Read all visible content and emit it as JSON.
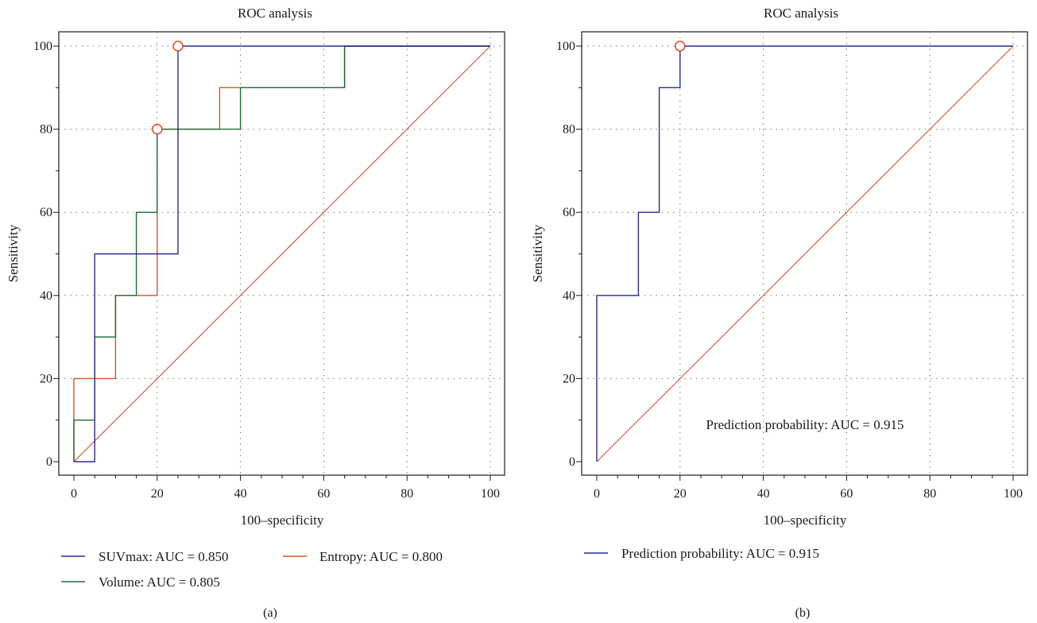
{
  "colors": {
    "suv": "#2b2b8f",
    "volume": "#1f6b3a",
    "entropy": "#e2522a",
    "diagonal": "#c9503a",
    "frame": "#1a1a1a",
    "grid": "#555555"
  },
  "chart_data": [
    {
      "type": "line",
      "panel_label": "(a)",
      "title": "ROC analysis",
      "xlabel": "100–specificity",
      "ylabel": "Sensitivity",
      "xlim": [
        0,
        100
      ],
      "ylim": [
        0,
        100
      ],
      "x_ticks": [
        "0",
        "20",
        "40",
        "60",
        "80",
        "100"
      ],
      "y_ticks": [
        "0",
        "20",
        "40",
        "60",
        "80",
        "100"
      ],
      "grid": "dotted",
      "legend_position": "bottom",
      "reference_line": {
        "x": [
          0,
          100
        ],
        "y": [
          0,
          100
        ]
      },
      "series": [
        {
          "name": "SUVmax: AUC = 0.850",
          "color_key": "suv",
          "step": true,
          "x": [
            0,
            5,
            5,
            25,
            25,
            100
          ],
          "y": [
            0,
            0,
            50,
            50,
            100,
            100
          ]
        },
        {
          "name": "Volume: AUC = 0.805",
          "color_key": "volume",
          "step": true,
          "x": [
            0,
            0,
            5,
            5,
            10,
            10,
            15,
            15,
            20,
            20,
            35,
            35,
            40,
            40,
            65,
            65,
            100
          ],
          "y": [
            0,
            10,
            10,
            30,
            30,
            40,
            40,
            60,
            60,
            80,
            80,
            80,
            80,
            90,
            90,
            100,
            100
          ]
        },
        {
          "name": "Entropy: AUC = 0.800",
          "color_key": "entropy",
          "step": true,
          "x": [
            0,
            0,
            5,
            5,
            10,
            10,
            20,
            20,
            35,
            35,
            65,
            65,
            100
          ],
          "y": [
            0,
            20,
            20,
            20,
            20,
            40,
            40,
            80,
            80,
            90,
            90,
            100,
            100
          ]
        }
      ],
      "markers": [
        {
          "x": 25,
          "y": 100
        },
        {
          "x": 20,
          "y": 80
        }
      ]
    },
    {
      "type": "line",
      "panel_label": "(b)",
      "title": "ROC analysis",
      "xlabel": "100–specificity",
      "ylabel": "Sensitivity",
      "xlim": [
        0,
        100
      ],
      "ylim": [
        0,
        100
      ],
      "x_ticks": [
        "0",
        "20",
        "40",
        "60",
        "80",
        "100"
      ],
      "y_ticks": [
        "0",
        "20",
        "40",
        "60",
        "80",
        "100"
      ],
      "grid": "dotted",
      "legend_position": "bottom",
      "annotation": "Prediction probability: AUC = 0.915",
      "reference_line": {
        "x": [
          0,
          100
        ],
        "y": [
          0,
          100
        ]
      },
      "series": [
        {
          "name": "Prediction probability: AUC = 0.915",
          "color_key": "suv",
          "step": true,
          "x": [
            0,
            0,
            10,
            10,
            15,
            15,
            20,
            20,
            100
          ],
          "y": [
            0,
            40,
            40,
            60,
            60,
            90,
            90,
            100,
            100
          ]
        }
      ],
      "markers": [
        {
          "x": 20,
          "y": 100
        }
      ]
    }
  ]
}
